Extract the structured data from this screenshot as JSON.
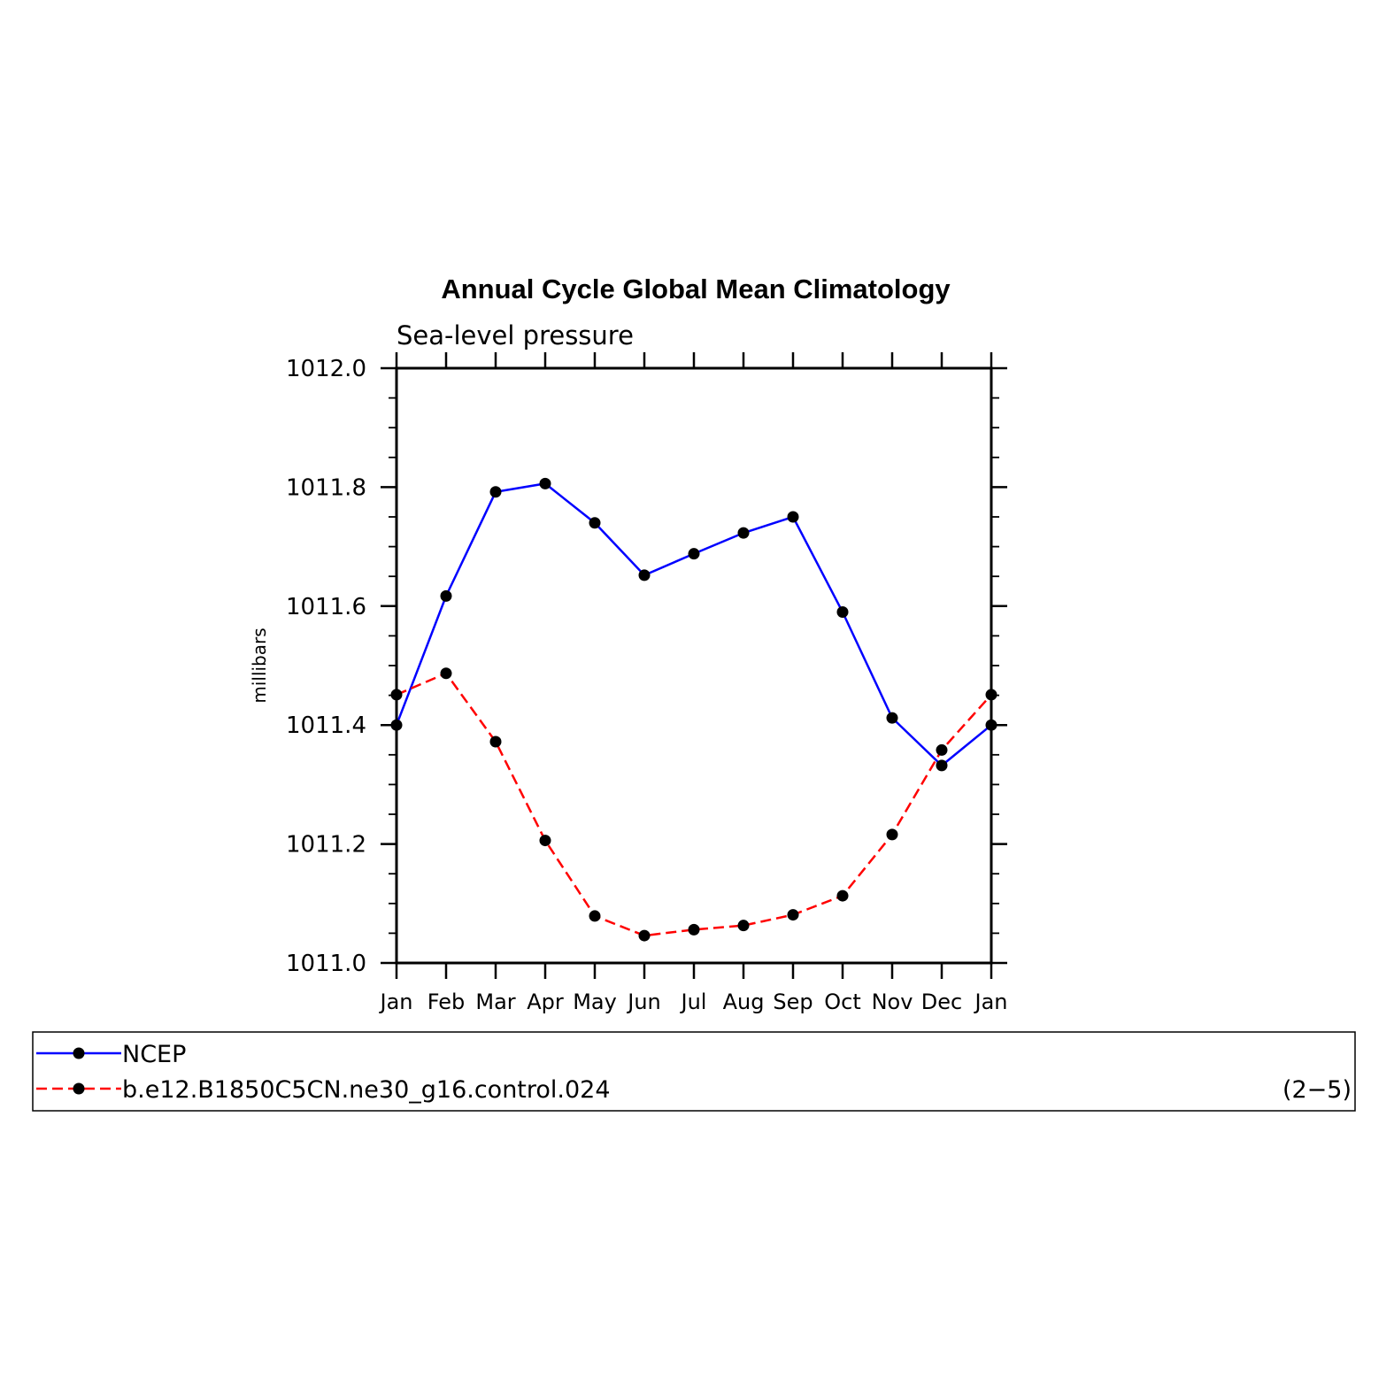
{
  "chart_data": {
    "type": "line",
    "title": "Annual Cycle Global Mean Climatology",
    "subtitle": "Sea-level pressure",
    "xlabel": "",
    "ylabel": "millibars",
    "categories": [
      "Jan",
      "Feb",
      "Mar",
      "Apr",
      "May",
      "Jun",
      "Jul",
      "Aug",
      "Sep",
      "Oct",
      "Nov",
      "Dec",
      "Jan"
    ],
    "ylim": [
      1011.0,
      1012.0
    ],
    "yticks": [
      "1011.0",
      "1011.2",
      "1011.4",
      "1011.6",
      "1011.8",
      "1012.0"
    ],
    "series": [
      {
        "name": "NCEP",
        "color": "#0000ff",
        "dash": "solid",
        "values": [
          1011.4,
          1011.617,
          1011.792,
          1011.806,
          1011.74,
          1011.652,
          1011.688,
          1011.723,
          1011.75,
          1011.59,
          1011.412,
          1011.332,
          1011.4
        ]
      },
      {
        "name": "b.e12.B1850C5CN.ne30_g16.control.024",
        "color": "#ff0000",
        "dash": "dashed",
        "values": [
          1011.451,
          1011.487,
          1011.372,
          1011.206,
          1011.079,
          1011.046,
          1011.056,
          1011.063,
          1011.081,
          1011.113,
          1011.216,
          1011.358,
          1011.451
        ]
      }
    ],
    "legend_position": "bottom",
    "grid": false
  },
  "legend": {
    "note": "(2−5)"
  }
}
